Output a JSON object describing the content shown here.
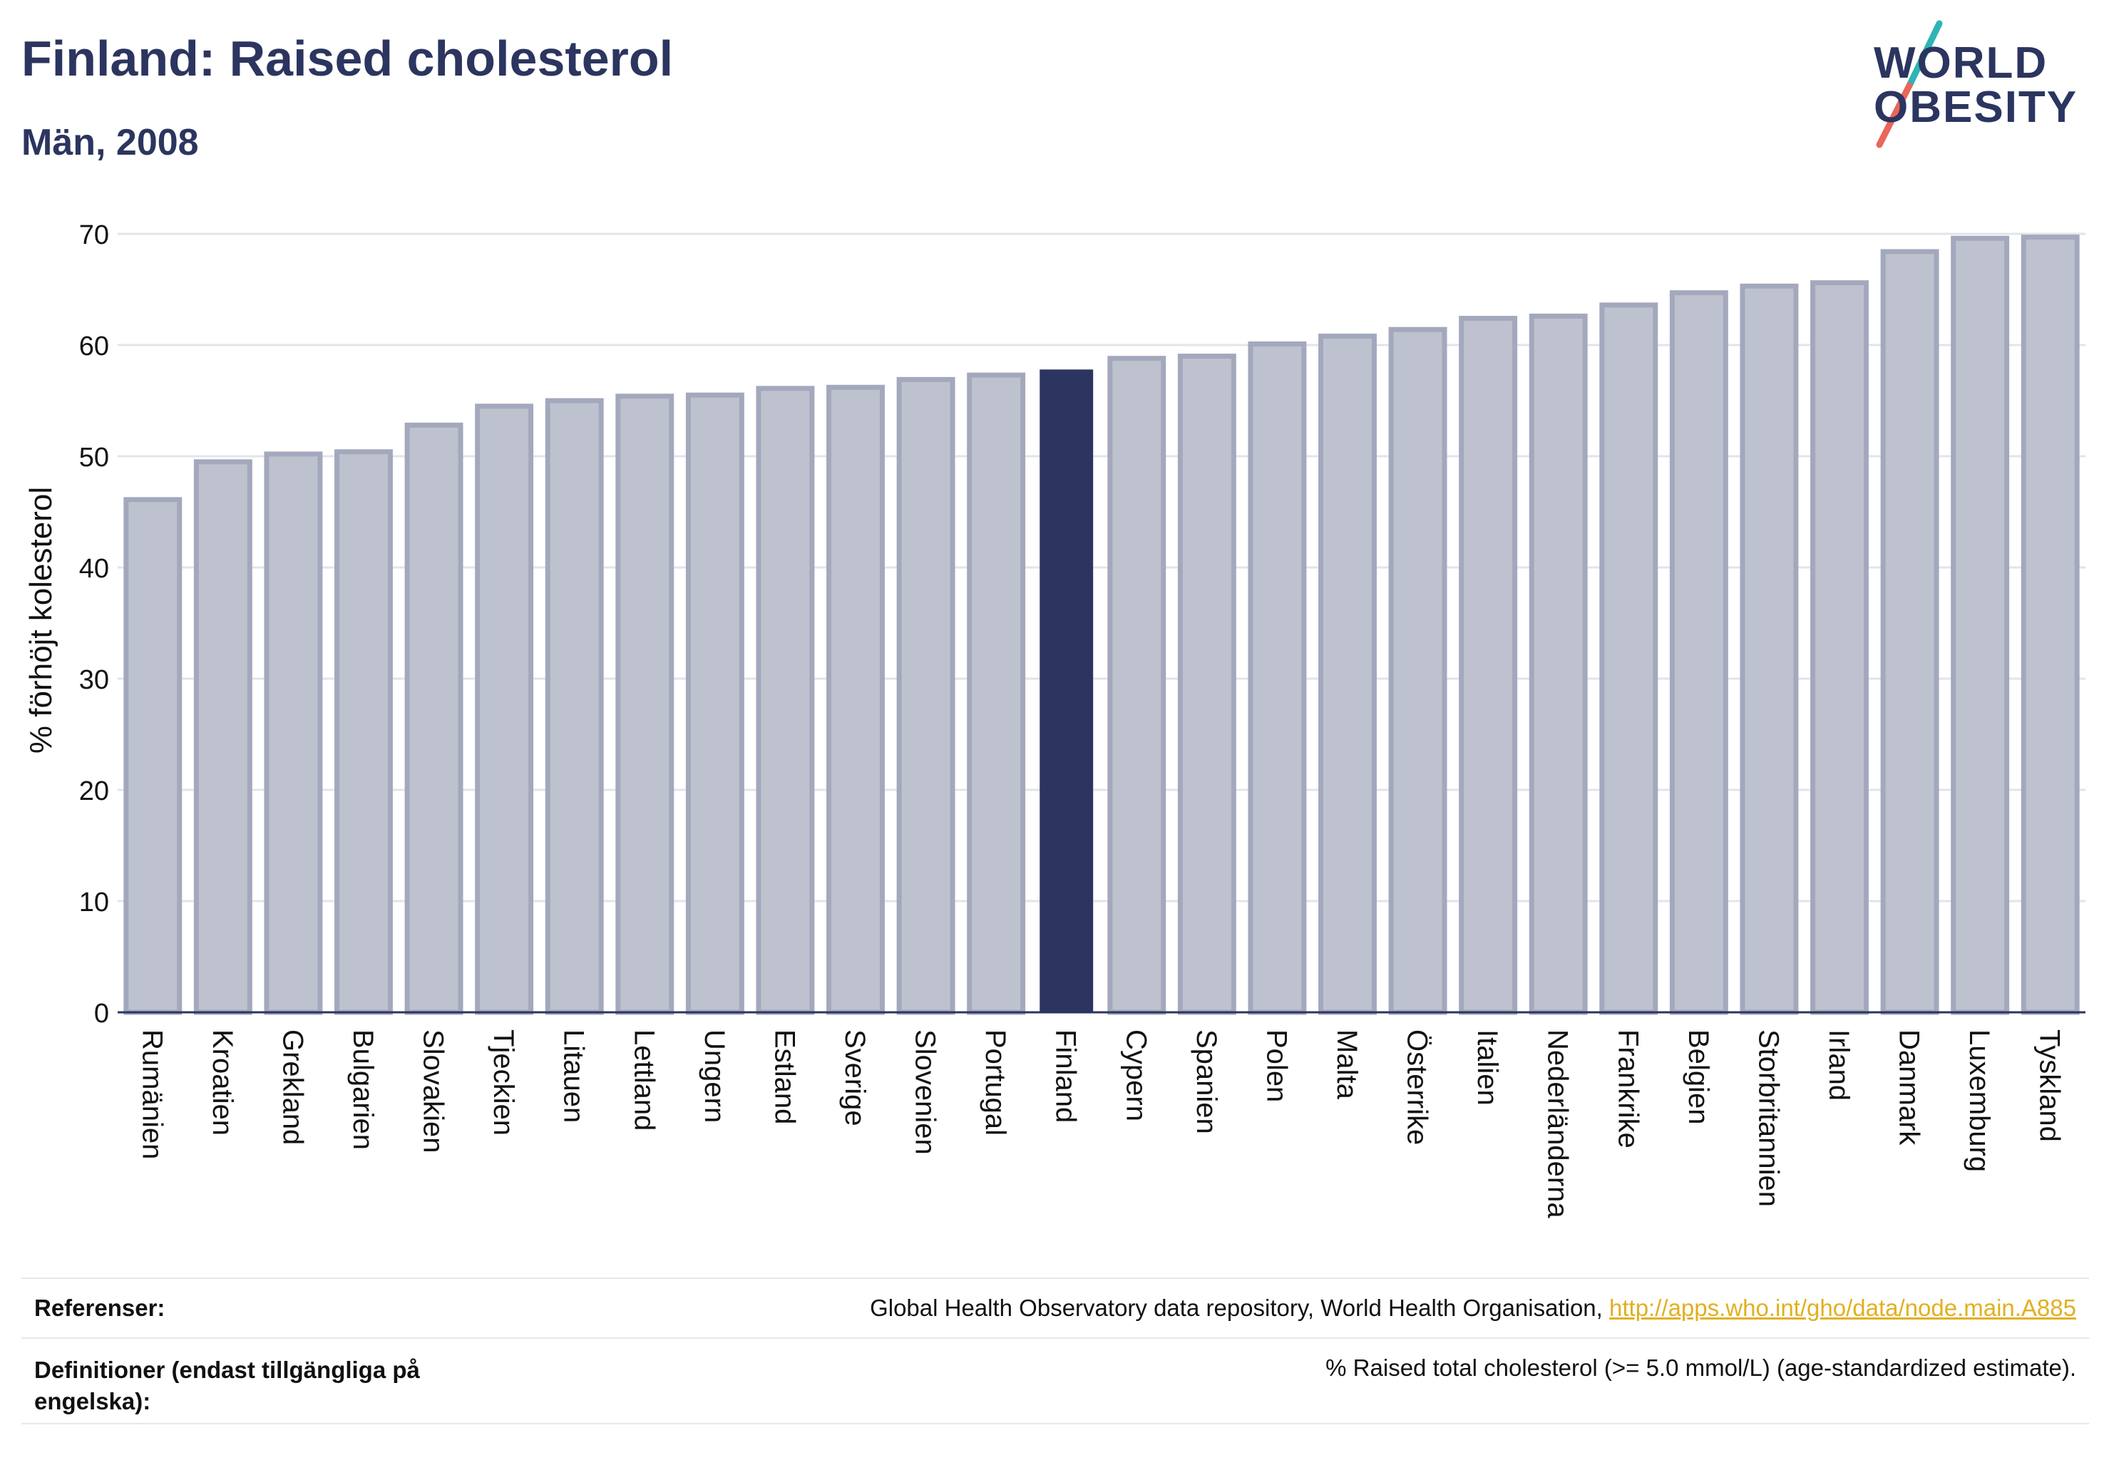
{
  "title": "Finland: Raised cholesterol",
  "subtitle": "Män, 2008",
  "logo": {
    "line1": "WORLD",
    "line2": "OBESITY"
  },
  "colors": {
    "highlight": "#2b355f",
    "bar": "#bec2cf",
    "bar_edge": "#a3a8bd",
    "link": "#e0b020",
    "logo_slash_top": "#2fb3b5",
    "logo_slash_bottom": "#e9665a"
  },
  "chart_data": {
    "type": "bar",
    "ylabel": "% förhöjt kolesterol",
    "xlabel": "",
    "ylim": [
      0,
      70
    ],
    "yticks": [
      0,
      10,
      20,
      30,
      40,
      50,
      60,
      70
    ],
    "grid": true,
    "highlight": "Finland",
    "categories": [
      "Rumänien",
      "Kroatien",
      "Grekland",
      "Bulgarien",
      "Slovakien",
      "Tjeckien",
      "Litauen",
      "Lettland",
      "Ungern",
      "Estland",
      "Sverige",
      "Slovenien",
      "Portugal",
      "Finland",
      "Cypern",
      "Spanien",
      "Polen",
      "Malta",
      "Österrike",
      "Italien",
      "Nederländerna",
      "Frankrike",
      "Belgien",
      "Storbritannien",
      "Irland",
      "Danmark",
      "Luxemburg",
      "Tyskland"
    ],
    "values": [
      46.1,
      49.5,
      50.2,
      50.4,
      52.8,
      54.5,
      55.0,
      55.4,
      55.5,
      56.1,
      56.2,
      56.9,
      57.3,
      57.8,
      58.8,
      59.0,
      60.1,
      60.8,
      61.4,
      62.4,
      62.6,
      63.6,
      64.7,
      65.3,
      65.6,
      68.4,
      69.6,
      69.7
    ]
  },
  "references": {
    "label": "Referenser:",
    "text": "Global Health Observatory data repository, World Health Organisation, ",
    "link": "http://apps.who.int/gho/data/node.main.A885"
  },
  "definitions": {
    "label": "Definitioner (endast tillgängliga på engelska):",
    "text": "% Raised total cholesterol (>= 5.0 mmol/L) (age-standardized estimate)."
  }
}
